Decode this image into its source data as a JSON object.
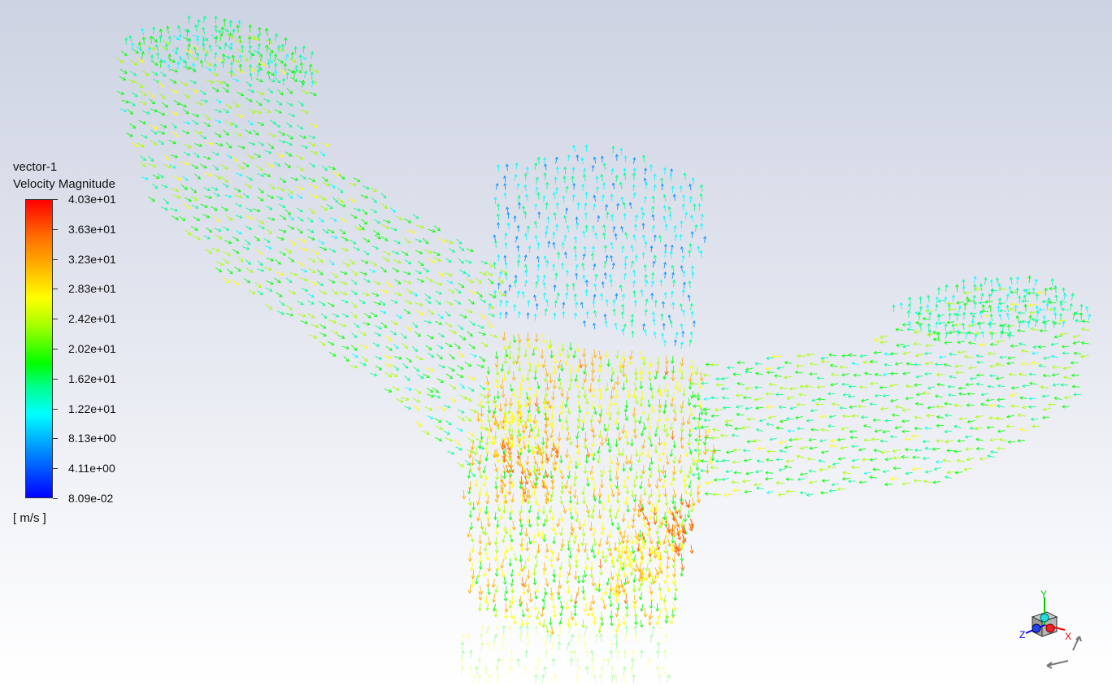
{
  "legend": {
    "title": "vector-1",
    "variable": "Velocity Magnitude",
    "ticks": [
      "4.03e+01",
      "3.63e+01",
      "3.23e+01",
      "2.83e+01",
      "2.42e+01",
      "2.02e+01",
      "1.62e+01",
      "1.22e+01",
      "8.13e+00",
      "4.11e+00",
      "8.09e-02"
    ],
    "units": "[ m/s ]"
  },
  "colormap": [
    "#0000ff",
    "#0090ff",
    "#00ffff",
    "#00ff90",
    "#00ff00",
    "#a8ff00",
    "#ffff00",
    "#ffb000",
    "#ff6a00",
    "#ff0000"
  ],
  "axis_triad": {
    "x_label": "X",
    "y_label": "Y",
    "z_label": "Z",
    "x_color": "#ff0000",
    "y_color": "#00cc00",
    "z_color": "#0000ff"
  }
}
